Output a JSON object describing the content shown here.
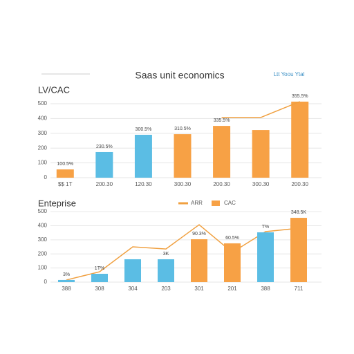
{
  "header_note": "Ltt Yoou Ytal",
  "chart_data": [
    {
      "type": "bar",
      "title": "Saas unit economics",
      "subtitle": "LV/CAC",
      "categories": [
        "$$ 1T",
        "200.30",
        "120.30",
        "300.30",
        "200.30",
        "300.30",
        "200.30"
      ],
      "series": [
        {
          "type": "bar",
          "values": [
            56,
            173,
            290,
            294,
            350,
            322,
            514
          ],
          "colors": [
            "#f7a145",
            "#5bbde4",
            "#5bbde4",
            "#f7a145",
            "#f7a145",
            "#f7a145",
            "#f7a145"
          ],
          "bar_labels": [
            "100.5%",
            "230.5%",
            "300.5%",
            "310.5%",
            "335.5%",
            null,
            "355.5%"
          ]
        },
        {
          "type": "line",
          "color": "#f0a040",
          "values": [
            null,
            null,
            null,
            null,
            407,
            407,
            514
          ]
        }
      ],
      "ylim": [
        0,
        520
      ],
      "yticks": [
        0,
        100,
        200,
        300,
        400,
        500
      ],
      "grid": true
    },
    {
      "type": "bar",
      "subtitle": "Enteprise",
      "categories": [
        "388",
        "308",
        "304",
        "203",
        "301",
        "201",
        "388",
        "711"
      ],
      "series": [
        {
          "type": "line",
          "name": "ARR",
          "color": "#f0a040",
          "values": [
            15,
            73,
            250,
            235,
            407,
            211,
            358,
            382
          ]
        },
        {
          "type": "bar",
          "name": "CAC",
          "values": [
            15,
            59,
            162,
            162,
            304,
            275,
            353,
            456
          ],
          "colors": [
            "#5bbde4",
            "#5bbde4",
            "#5bbde4",
            "#5bbde4",
            "#f7a145",
            "#f7a145",
            "#5bbde4",
            "#f7a145"
          ],
          "bar_labels": [
            "3%",
            "1T%",
            null,
            "3K",
            "90.3%",
            "60.5%",
            "T%",
            "348.5K"
          ]
        }
      ],
      "ylim": [
        0,
        520
      ],
      "yticks": [
        0,
        100,
        200,
        300,
        400,
        500
      ],
      "grid": true
    }
  ]
}
